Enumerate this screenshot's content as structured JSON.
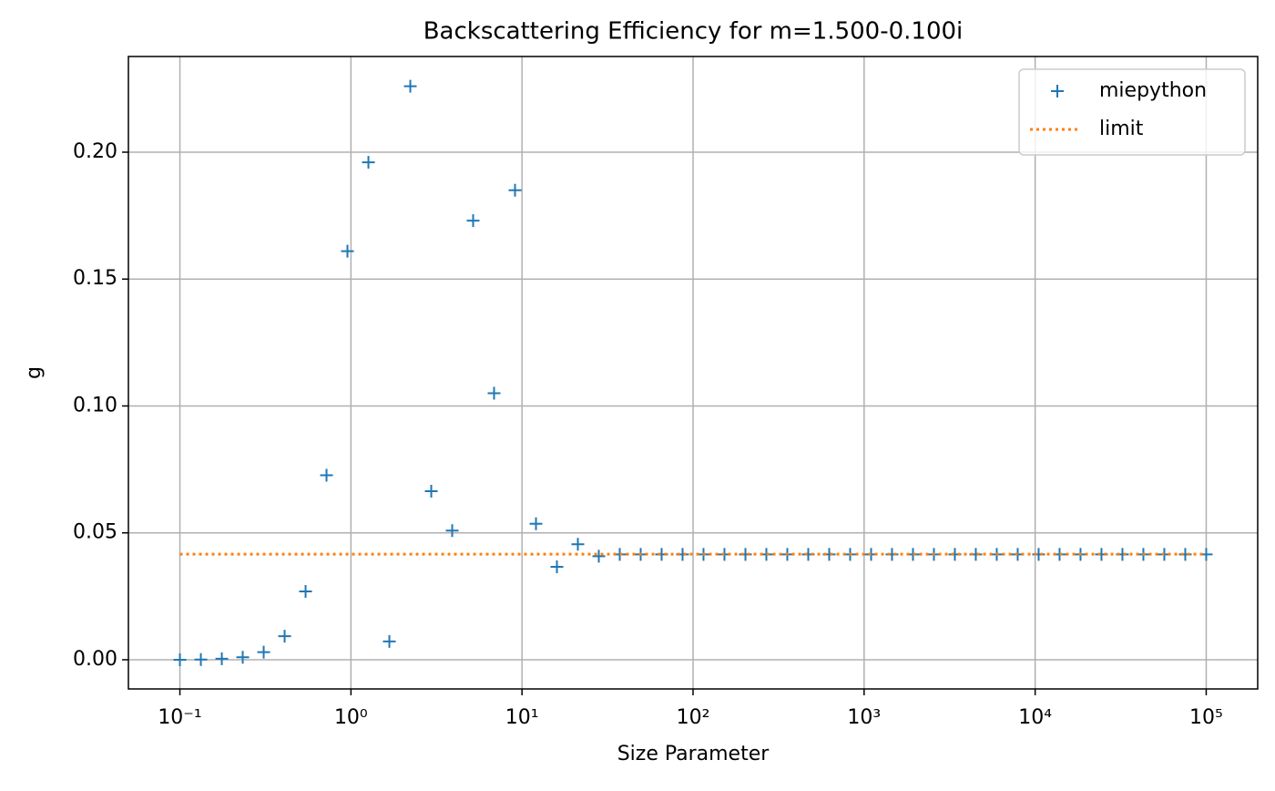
{
  "chart_data": {
    "type": "scatter",
    "title": "Backscattering Efficiency for m=1.500-0.100i",
    "xlabel": "Size Parameter",
    "ylabel": "g",
    "xscale": "log",
    "grid": true,
    "legend": "upper right",
    "xlim": [
      0.05,
      200000
    ],
    "ylim": [
      -0.0115,
      0.2377
    ],
    "xticks": [
      {
        "value": 0.1,
        "label": "10⁻¹"
      },
      {
        "value": 1,
        "label": "10⁰"
      },
      {
        "value": 10,
        "label": "10¹"
      },
      {
        "value": 100,
        "label": "10²"
      },
      {
        "value": 1000,
        "label": "10³"
      },
      {
        "value": 10000,
        "label": "10⁴"
      },
      {
        "value": 100000,
        "label": "10⁵"
      }
    ],
    "yticks": [
      {
        "value": 0,
        "label": "0.00"
      },
      {
        "value": 0.05,
        "label": "0.05"
      },
      {
        "value": 0.1,
        "label": "0.10"
      },
      {
        "value": 0.15,
        "label": "0.15"
      },
      {
        "value": 0.2,
        "label": "0.20"
      }
    ],
    "series": [
      {
        "name": "miepython",
        "color": "#1f77b4",
        "marker": "+",
        "x": [
          0.1,
          0.1326,
          0.1758,
          0.233,
          0.3089,
          0.4095,
          0.5429,
          0.7197,
          0.9541,
          1.265,
          1.677,
          2.223,
          2.947,
          3.907,
          5.179,
          6.866,
          9.103,
          12.07,
          16.0,
          21.21,
          28.12,
          37.28,
          49.42,
          65.51,
          86.85,
          115.1,
          152.6,
          202.4,
          268.3,
          355.6,
          471.5,
          625.1,
          828.6,
          1099,
          1456,
          1931,
          2560,
          3393,
          4498,
          5964,
          7906,
          10481,
          13895,
          18421,
          24421,
          32375,
          42919,
          56899,
          75431,
          100000
        ],
        "values": [
          0.0,
          0.0001,
          0.0004,
          0.001,
          0.003,
          0.0093,
          0.0269,
          0.0727,
          0.161,
          0.196,
          0.0072,
          0.226,
          0.0664,
          0.0509,
          0.173,
          0.105,
          0.185,
          0.0536,
          0.0366,
          0.0455,
          0.0408,
          0.0415,
          0.0415,
          0.0415,
          0.0415,
          0.0415,
          0.0415,
          0.0415,
          0.0415,
          0.0415,
          0.0415,
          0.0415,
          0.0415,
          0.0415,
          0.0415,
          0.0415,
          0.0415,
          0.0415,
          0.0415,
          0.0415,
          0.0415,
          0.0415,
          0.0415,
          0.0415,
          0.0415,
          0.0415,
          0.0415,
          0.0415,
          0.0415,
          0.0415
        ]
      },
      {
        "name": "limit",
        "color": "#ff7f0e",
        "line": "dotted",
        "x": [
          0.1,
          100000
        ],
        "values": [
          0.0416,
          0.0416
        ]
      }
    ]
  }
}
